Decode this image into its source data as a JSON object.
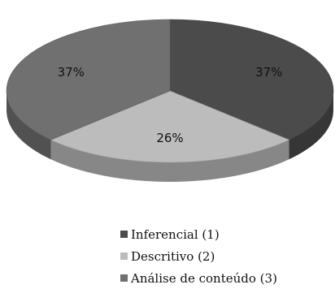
{
  "chart_data": {
    "type": "pie",
    "title": "",
    "slices": [
      {
        "label": "Inferencial (1)",
        "value": 37,
        "value_label": "37%",
        "color": "#4b4b4b"
      },
      {
        "label": "Descritivo (2)",
        "value": 26,
        "value_label": "26%",
        "color": "#bcbcbc"
      },
      {
        "label": "Análise de conteúdo (3)",
        "value": 37,
        "value_label": "37%",
        "color": "#707070"
      }
    ],
    "legend_position": "bottom",
    "style": "3d"
  }
}
